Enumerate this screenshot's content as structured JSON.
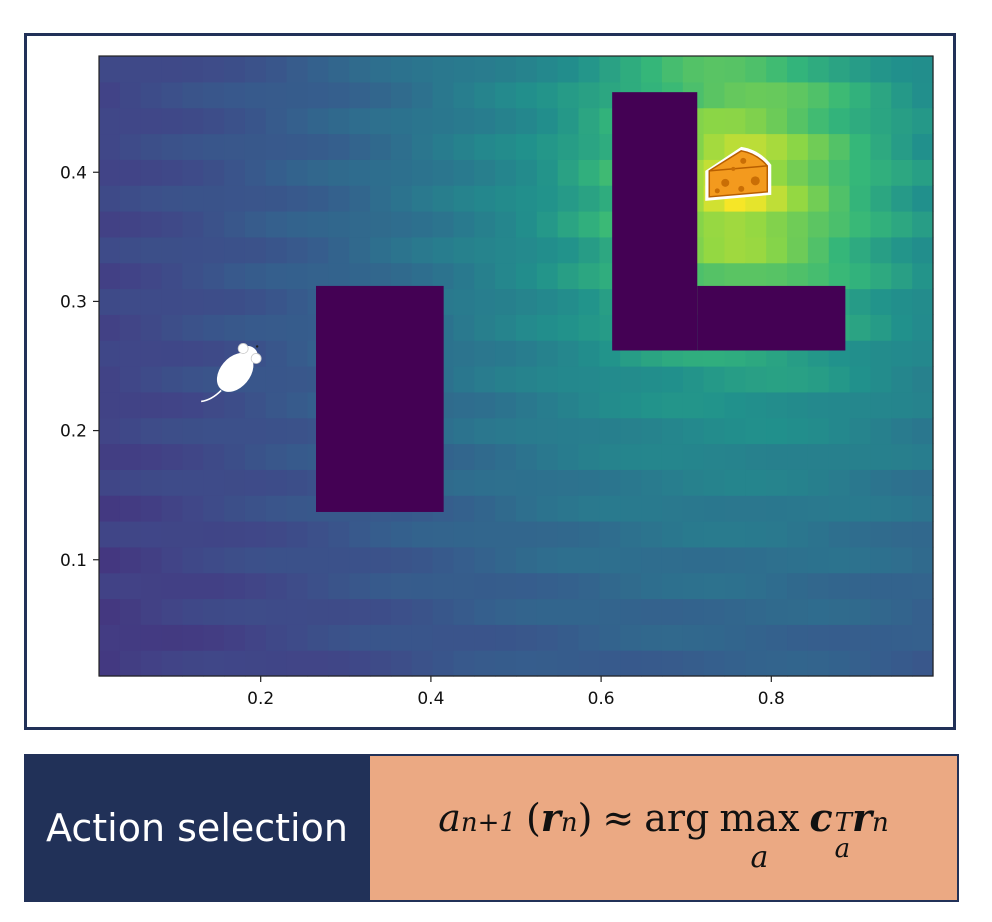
{
  "caption": {
    "title": "Action selection",
    "formula": {
      "a": "a",
      "a_sub": "n+1",
      "lparen": "(",
      "r": "r",
      "r_sub": "n",
      "rparen": ")",
      "approx": "≈",
      "arg": "arg",
      "max": "max",
      "max_under": "a",
      "c": "c",
      "c_sup": "T",
      "c_sub": "a",
      "r2": "r",
      "r2_sub": "n"
    }
  },
  "chart_data": {
    "type": "heatmap",
    "title": "",
    "xlabel": "",
    "ylabel": "",
    "xlim": [
      0.01,
      0.99
    ],
    "ylim": [
      0.01,
      0.49
    ],
    "x_ticks": [
      "0.2",
      "0.4",
      "0.6",
      "0.8"
    ],
    "y_ticks": [
      "0.1",
      "0.2",
      "0.3",
      "0.4"
    ],
    "colormap": "viridis",
    "grid": false,
    "value_peak": {
      "x": 0.76,
      "y": 0.39
    },
    "obstacles": [
      {
        "x0": 0.265,
        "x1": 0.415,
        "y0": 0.137,
        "y1": 0.312
      },
      {
        "x0": 0.613,
        "x1": 0.713,
        "y0": 0.262,
        "y1": 0.462
      },
      {
        "x0": 0.713,
        "x1": 0.887,
        "y0": 0.262,
        "y1": 0.312
      }
    ],
    "agent": {
      "icon": "mouse-icon",
      "x": 0.17,
      "y": 0.245
    },
    "goal": {
      "icon": "cheese-icon",
      "x": 0.76,
      "y": 0.398
    },
    "colors": {
      "obstacle": "#440154",
      "frame": "#213158",
      "caption_left": "#213158",
      "caption_right": "#eba983"
    }
  }
}
